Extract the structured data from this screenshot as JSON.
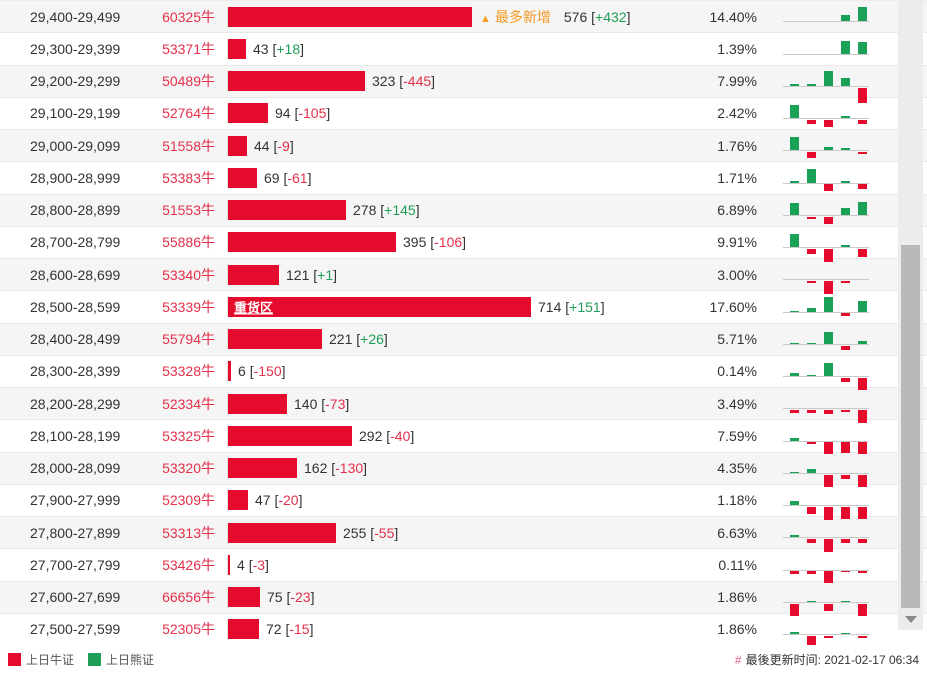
{
  "colors": {
    "bar_red": "#e50b2c",
    "mini_green": "#1aa157",
    "bull_text_red": "#e5304a",
    "delta_green": "#1f9e57",
    "delta_red": "#e5304a",
    "orange_tag": "#f59a23"
  },
  "table": {
    "most_added_arrow": "▲",
    "most_added_label": "最多新增",
    "heavy_zone_label": "重货区",
    "rows": [
      {
        "range": "29,400-29,499",
        "bulls": "60325牛",
        "bar_value": 576,
        "delta": "+432",
        "pct": "14.40%",
        "tag": "most_added",
        "mini": [
          0,
          0,
          0,
          6,
          14
        ]
      },
      {
        "range": "29,300-29,399",
        "bulls": "53371牛",
        "bar_value": 43,
        "delta": "+18",
        "pct": "1.39%",
        "tag": null,
        "mini": [
          0,
          0,
          0,
          13,
          12
        ]
      },
      {
        "range": "29,200-29,299",
        "bulls": "50489牛",
        "bar_value": 323,
        "delta": "-445",
        "pct": "7.99%",
        "tag": null,
        "mini": [
          2,
          2,
          15,
          8,
          -15
        ]
      },
      {
        "range": "29,100-29,199",
        "bulls": "52764牛",
        "bar_value": 94,
        "delta": "-105",
        "pct": "2.42%",
        "tag": null,
        "mini": [
          13,
          -4,
          -7,
          2,
          -4
        ]
      },
      {
        "range": "29,000-29,099",
        "bulls": "51558牛",
        "bar_value": 44,
        "delta": "-9",
        "pct": "1.76%",
        "tag": null,
        "mini": [
          13,
          -6,
          3,
          2,
          -2
        ]
      },
      {
        "range": "28,900-28,999",
        "bulls": "53383牛",
        "bar_value": 69,
        "delta": "-61",
        "pct": "1.71%",
        "tag": null,
        "mini": [
          2,
          14,
          -7,
          2,
          -5
        ]
      },
      {
        "range": "28,800-28,899",
        "bulls": "51553牛",
        "bar_value": 278,
        "delta": "+145",
        "pct": "6.89%",
        "tag": null,
        "mini": [
          12,
          -2,
          -7,
          7,
          13
        ]
      },
      {
        "range": "28,700-28,799",
        "bulls": "55886牛",
        "bar_value": 395,
        "delta": "-106",
        "pct": "9.91%",
        "tag": null,
        "mini": [
          13,
          -5,
          -13,
          2,
          -8
        ]
      },
      {
        "range": "28,600-28,699",
        "bulls": "53340牛",
        "bar_value": 121,
        "delta": "+1",
        "pct": "3.00%",
        "tag": null,
        "mini": [
          0,
          -2,
          -13,
          -2,
          0
        ]
      },
      {
        "range": "28,500-28,599",
        "bulls": "53339牛",
        "bar_value": 714,
        "delta": "+151",
        "pct": "17.60%",
        "tag": "heavy_zone",
        "mini": [
          1,
          4,
          15,
          -3,
          11
        ]
      },
      {
        "range": "28,400-28,499",
        "bulls": "55794牛",
        "bar_value": 221,
        "delta": "+26",
        "pct": "5.71%",
        "tag": null,
        "mini": [
          1,
          1,
          12,
          -4,
          3
        ]
      },
      {
        "range": "28,300-28,399",
        "bulls": "53328牛",
        "bar_value": 6,
        "delta": "-150",
        "pct": "0.14%",
        "tag": null,
        "mini": [
          3,
          1,
          13,
          -4,
          -12
        ]
      },
      {
        "range": "28,200-28,299",
        "bulls": "52334牛",
        "bar_value": 140,
        "delta": "-73",
        "pct": "3.49%",
        "tag": null,
        "mini": [
          -3,
          -3,
          -4,
          -2,
          -13
        ]
      },
      {
        "range": "28,100-28,199",
        "bulls": "53325牛",
        "bar_value": 292,
        "delta": "-40",
        "pct": "7.59%",
        "tag": null,
        "mini": [
          3,
          -2,
          -12,
          -11,
          -12
        ]
      },
      {
        "range": "28,000-28,099",
        "bulls": "53320牛",
        "bar_value": 162,
        "delta": "-130",
        "pct": "4.35%",
        "tag": null,
        "mini": [
          1,
          4,
          -12,
          -4,
          -12
        ]
      },
      {
        "range": "27,900-27,999",
        "bulls": "52309牛",
        "bar_value": 47,
        "delta": "-20",
        "pct": "1.18%",
        "tag": null,
        "mini": [
          4,
          -7,
          -13,
          -12,
          -12
        ]
      },
      {
        "range": "27,800-27,899",
        "bulls": "53313牛",
        "bar_value": 255,
        "delta": "-55",
        "pct": "6.63%",
        "tag": null,
        "mini": [
          2,
          -4,
          -13,
          -4,
          -4
        ]
      },
      {
        "range": "27,700-27,799",
        "bulls": "53426牛",
        "bar_value": 4,
        "delta": "-3",
        "pct": "0.11%",
        "tag": null,
        "mini": [
          -3,
          -3,
          -12,
          -1,
          -2
        ]
      },
      {
        "range": "27,600-27,699",
        "bulls": "66656牛",
        "bar_value": 75,
        "delta": "-23",
        "pct": "1.86%",
        "tag": null,
        "mini": [
          -12,
          1,
          -7,
          1,
          -12
        ]
      },
      {
        "range": "27,500-27,599",
        "bulls": "52305牛",
        "bar_value": 72,
        "delta": "-15",
        "pct": "1.86%",
        "tag": null,
        "mini": [
          2,
          -15,
          -2,
          1,
          -2
        ]
      }
    ]
  },
  "legend": {
    "bull_label": "上日牛证",
    "bear_label": "上日熊证"
  },
  "footer": {
    "hash": "#",
    "updated": "最後更新时间: 2021-02-17 06:34"
  }
}
